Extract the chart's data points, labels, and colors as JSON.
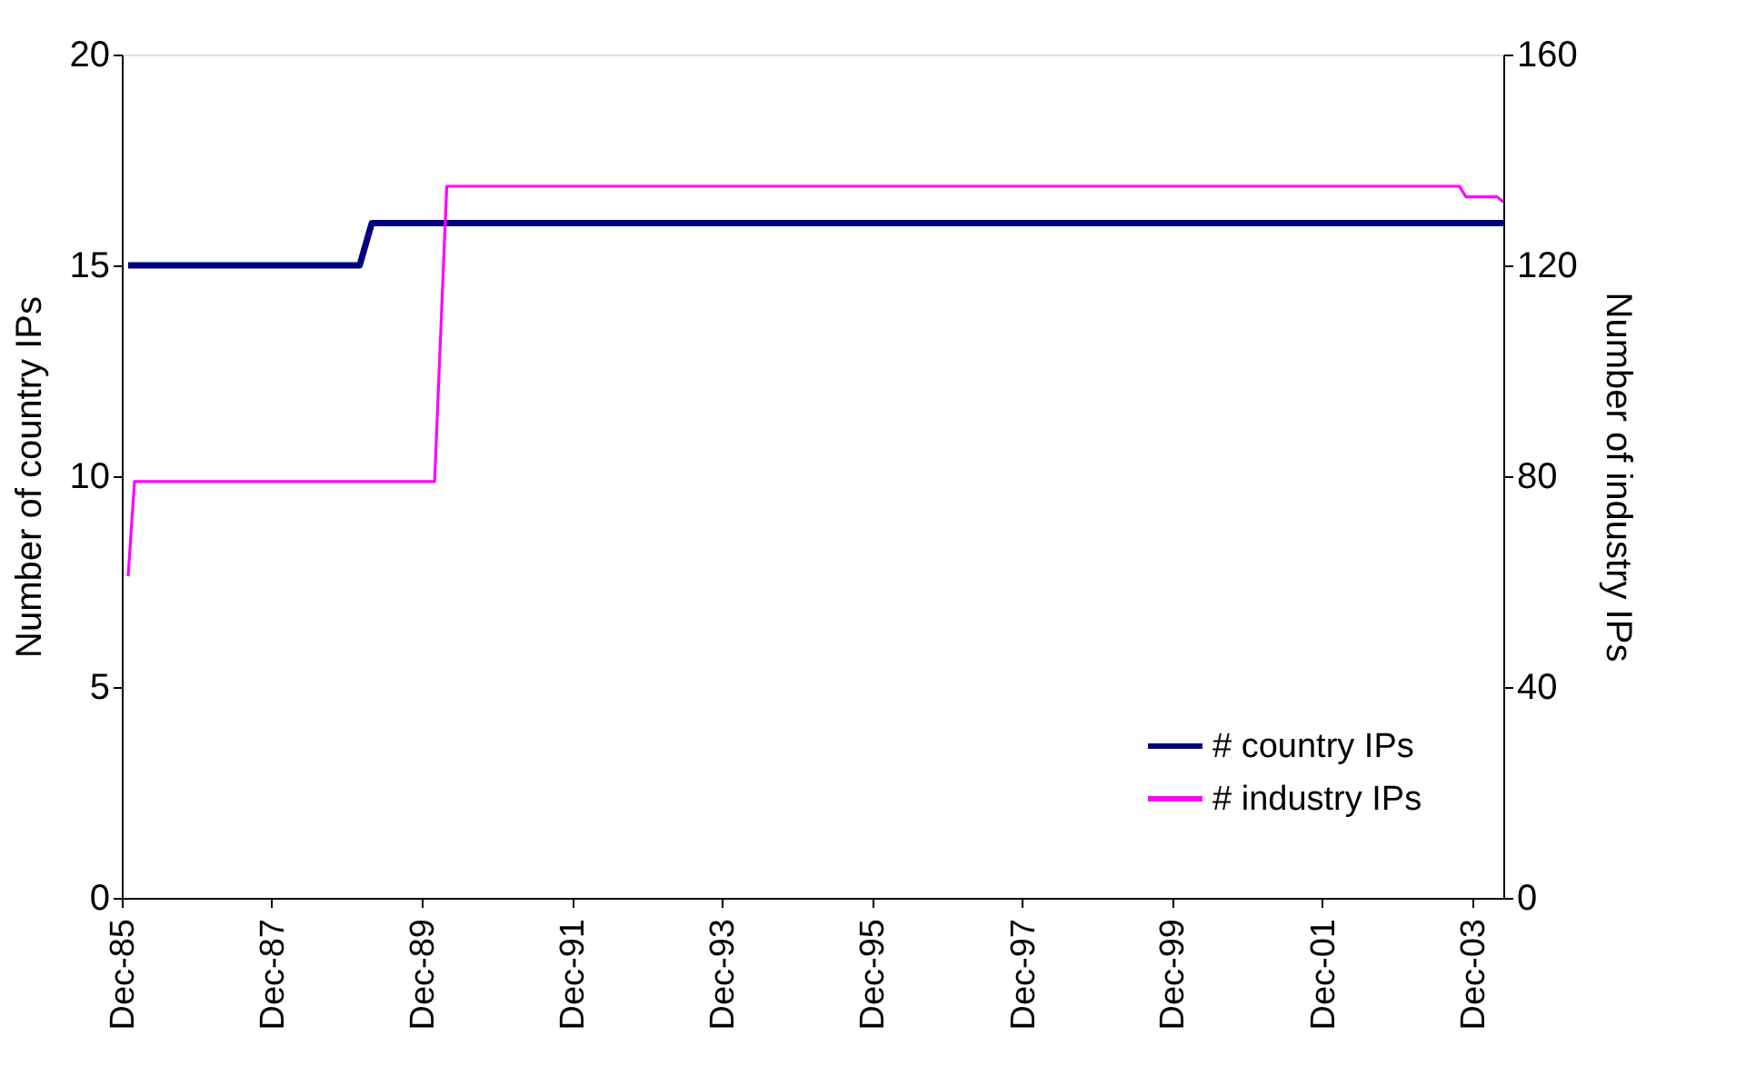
{
  "chart_data": {
    "type": "line",
    "ylabel": "Number of country IPs",
    "y2label": "Number of industry IPs",
    "xlim": [
      "1985-12",
      "2004-05"
    ],
    "xticks": [
      {
        "value": "1985-12",
        "label": "Dec-85"
      },
      {
        "value": "1987-12",
        "label": "Dec-87"
      },
      {
        "value": "1989-12",
        "label": "Dec-89"
      },
      {
        "value": "1991-12",
        "label": "Dec-91"
      },
      {
        "value": "1993-12",
        "label": "Dec-93"
      },
      {
        "value": "1995-12",
        "label": "Dec-95"
      },
      {
        "value": "1997-12",
        "label": "Dec-97"
      },
      {
        "value": "1999-12",
        "label": "Dec-99"
      },
      {
        "value": "2001-12",
        "label": "Dec-01"
      },
      {
        "value": "2003-12",
        "label": "Dec-03"
      }
    ],
    "ylim": [
      0,
      20
    ],
    "yticks": [
      0,
      5,
      10,
      15,
      20
    ],
    "y2lim": [
      0,
      160
    ],
    "y2ticks": [
      0,
      40,
      80,
      120,
      160
    ],
    "grid": false,
    "legend": "bottom right",
    "marker": "none",
    "line_style": "solid",
    "series": [
      {
        "name": "# country IPs",
        "color": "#000080",
        "x": [
          "1986-01",
          "1989-02",
          "1989-04",
          "2004-05"
        ],
        "values": [
          15,
          15,
          16,
          16
        ]
      },
      {
        "name": "# industry IPs",
        "color": "#ff00ff",
        "axis": "y2",
        "x": [
          "1986-01",
          "1986-02",
          "1990-02",
          "1990-04",
          "2003-10",
          "2003-11",
          "2004-04",
          "2004-05"
        ],
        "values": [
          61,
          79,
          79,
          135,
          135,
          133,
          133,
          132
        ]
      }
    ]
  }
}
